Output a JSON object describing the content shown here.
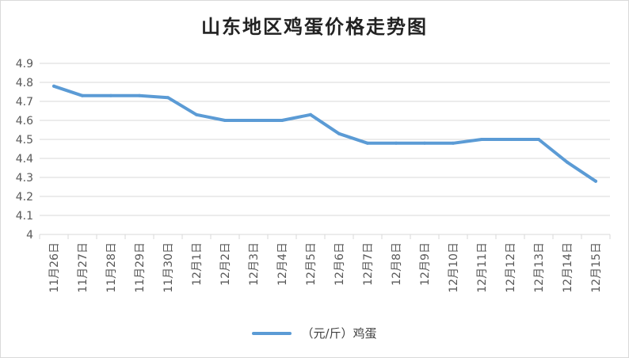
{
  "chart_data": {
    "type": "line",
    "title": "山东地区鸡蛋价格走势图",
    "xlabel": "",
    "ylabel": "",
    "categories": [
      "11月26日",
      "11月27日",
      "11月28日",
      "11月29日",
      "11月30日",
      "12月1日",
      "12月2日",
      "12月3日",
      "12月4日",
      "12月5日",
      "12月6日",
      "12月7日",
      "12月8日",
      "12月9日",
      "12月10日",
      "12月11日",
      "12月12日",
      "12月13日",
      "12月14日",
      "12月15日"
    ],
    "series": [
      {
        "name": "（元/斤）鸡蛋",
        "values": [
          4.78,
          4.73,
          4.73,
          4.73,
          4.72,
          4.63,
          4.6,
          4.6,
          4.6,
          4.63,
          4.53,
          4.48,
          4.48,
          4.48,
          4.48,
          4.5,
          4.5,
          4.5,
          4.38,
          4.28
        ],
        "color": "#5b9bd5"
      }
    ],
    "ylim": [
      4,
      4.9
    ],
    "yticks": [
      "4",
      "4.1",
      "4.2",
      "4.3",
      "4.4",
      "4.5",
      "4.6",
      "4.7",
      "4.8",
      "4.9"
    ],
    "grid": true,
    "legend_position": "bottom"
  },
  "colors": {
    "series_line": "#5b9bd5",
    "gridline": "#d9d9d9",
    "axis_text": "#595959"
  }
}
